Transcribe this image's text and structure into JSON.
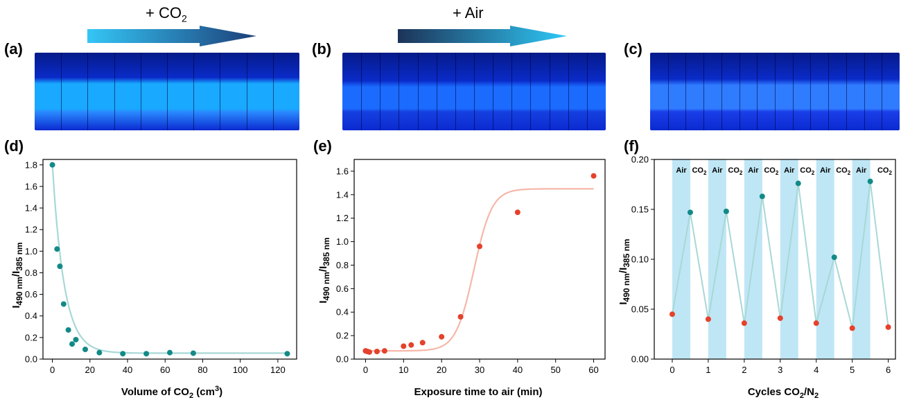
{
  "panels": {
    "a": "(a)",
    "b": "(b)",
    "c": "(c)",
    "d": "(d)",
    "e": "(e)",
    "f": "(f)"
  },
  "arrows": {
    "co2": {
      "prefix": "+ CO",
      "sub": "2"
    },
    "air": {
      "text": "+ Air"
    }
  },
  "colors": {
    "teal": "#128a87",
    "red": "#e5412c",
    "fit_teal": "#a7d8d6",
    "fit_red": "#f6b7a9",
    "band": "#bfe6f5",
    "vial_bright": "#19a9ff",
    "vial_dark": "#0a1fd0"
  },
  "ylabel_main": {
    "main": "I",
    "sub1": "490 nm",
    "mid": "/I",
    "sub2": "385 nm"
  },
  "chart_data": [
    {
      "type": "scatter",
      "xlabel": {
        "main": "Volume of CO",
        "sub": "2",
        "suffix": " (cm",
        "sup": "3",
        "end": ")"
      },
      "xlim": [
        -5,
        130
      ],
      "ylim": [
        0,
        1.85
      ],
      "xticks": [
        0,
        20,
        40,
        60,
        80,
        100,
        120
      ],
      "yticks": [
        0.0,
        0.2,
        0.4,
        0.6,
        0.8,
        1.0,
        1.2,
        1.4,
        1.6,
        1.8
      ],
      "ytick_labels": [
        "0.0",
        "0.2",
        "0.4",
        "0.6",
        "0.8",
        "1.0",
        "1.2",
        "1.4",
        "1.6",
        "1.8"
      ],
      "points": [
        [
          0,
          1.8
        ],
        [
          2.5,
          1.02
        ],
        [
          4,
          0.86
        ],
        [
          6,
          0.51
        ],
        [
          8.5,
          0.27
        ],
        [
          10.5,
          0.14
        ],
        [
          12.5,
          0.18
        ],
        [
          17.5,
          0.09
        ],
        [
          25,
          0.06
        ],
        [
          37.5,
          0.05
        ],
        [
          50,
          0.05
        ],
        [
          62.5,
          0.06
        ],
        [
          75,
          0.055
        ],
        [
          125,
          0.05
        ]
      ],
      "fit": {
        "a": 1.75,
        "k": 0.16,
        "c": 0.055
      }
    },
    {
      "type": "scatter",
      "xlabel": "Exposure time to air (min)",
      "xlim": [
        -3,
        63
      ],
      "ylim": [
        0,
        1.7
      ],
      "xticks": [
        0,
        10,
        20,
        30,
        40,
        50,
        60
      ],
      "yticks": [
        0.0,
        0.2,
        0.4,
        0.6,
        0.8,
        1.0,
        1.2,
        1.4,
        1.6
      ],
      "ytick_labels": [
        "0.0",
        "0.2",
        "0.4",
        "0.6",
        "0.8",
        "1.0",
        "1.2",
        "1.4",
        "1.6"
      ],
      "points": [
        [
          0,
          0.07
        ],
        [
          0.5,
          0.065
        ],
        [
          1,
          0.06
        ],
        [
          3,
          0.065
        ],
        [
          5,
          0.07
        ],
        [
          10,
          0.11
        ],
        [
          12,
          0.12
        ],
        [
          15,
          0.14
        ],
        [
          20,
          0.19
        ],
        [
          25,
          0.36
        ],
        [
          30,
          0.96
        ],
        [
          40,
          1.25
        ],
        [
          60,
          1.56
        ]
      ],
      "fit": {
        "base": 0.07,
        "top": 1.45,
        "x0": 28.5,
        "k": 0.42
      }
    },
    {
      "type": "line",
      "xlabel": {
        "main": "Cycles CO",
        "sub": "2",
        "suffix": "/N",
        "sub2": "2"
      },
      "xlim": [
        -0.5,
        6.2
      ],
      "ylim": [
        0,
        0.2
      ],
      "xticks": [
        0,
        1,
        2,
        3,
        4,
        5,
        6
      ],
      "yticks": [
        0.0,
        0.05,
        0.1,
        0.15,
        0.2
      ],
      "ytick_labels": [
        "0.00",
        "0.05",
        "0.10",
        "0.15",
        "0.20"
      ],
      "bands": [
        [
          0,
          0.5
        ],
        [
          1,
          1.5
        ],
        [
          2,
          2.5
        ],
        [
          3,
          3.5
        ],
        [
          4,
          4.5
        ],
        [
          5,
          5.5
        ]
      ],
      "band_labels": [
        {
          "x": 0.25,
          "text": "Air",
          "sub": ""
        },
        {
          "x": 0.75,
          "text": "CO",
          "sub": "2"
        },
        {
          "x": 1.25,
          "text": "Air",
          "sub": ""
        },
        {
          "x": 1.75,
          "text": "CO",
          "sub": "2"
        },
        {
          "x": 2.25,
          "text": "Air",
          "sub": ""
        },
        {
          "x": 2.75,
          "text": "CO",
          "sub": "2"
        },
        {
          "x": 3.25,
          "text": "Air",
          "sub": ""
        },
        {
          "x": 3.75,
          "text": "CO",
          "sub": "2"
        },
        {
          "x": 4.25,
          "text": "Air",
          "sub": ""
        },
        {
          "x": 4.75,
          "text": "CO",
          "sub": "2"
        },
        {
          "x": 5.25,
          "text": "Air",
          "sub": ""
        },
        {
          "x": 5.9,
          "text": "CO",
          "sub": "2"
        }
      ],
      "series": [
        {
          "color": "red",
          "points": [
            [
              0,
              0.045
            ],
            [
              1,
              0.04
            ],
            [
              2,
              0.036
            ],
            [
              3,
              0.041
            ],
            [
              4,
              0.036
            ],
            [
              5,
              0.031
            ],
            [
              6,
              0.032
            ]
          ]
        },
        {
          "color": "teal",
          "points": [
            [
              0.5,
              0.147
            ],
            [
              1.5,
              0.148
            ],
            [
              2.5,
              0.163
            ],
            [
              3.5,
              0.176
            ],
            [
              4.5,
              0.102
            ],
            [
              5.5,
              0.178
            ]
          ]
        }
      ]
    }
  ]
}
